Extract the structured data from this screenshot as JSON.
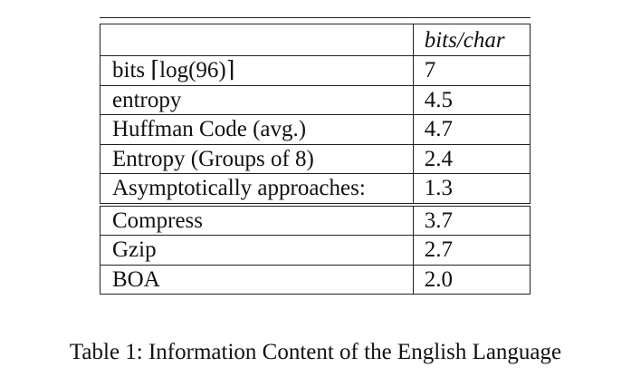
{
  "table": {
    "header": {
      "label": "",
      "unit": "bits/char"
    },
    "rows": [
      {
        "label": "bits ⌈log(96)⌉",
        "value": "7"
      },
      {
        "label": "entropy",
        "value": "4.5"
      },
      {
        "label": "Huffman Code (avg.)",
        "value": "4.7"
      },
      {
        "label": "Entropy (Groups of 8)",
        "value": "2.4"
      },
      {
        "label": "Asymptotically approaches:",
        "value": "1.3"
      },
      {
        "label": "Compress",
        "value": "3.7"
      },
      {
        "label": "Gzip",
        "value": "2.7"
      },
      {
        "label": "BOA",
        "value": "2.0"
      }
    ]
  },
  "caption": "Table 1: Information Content of the English Language"
}
